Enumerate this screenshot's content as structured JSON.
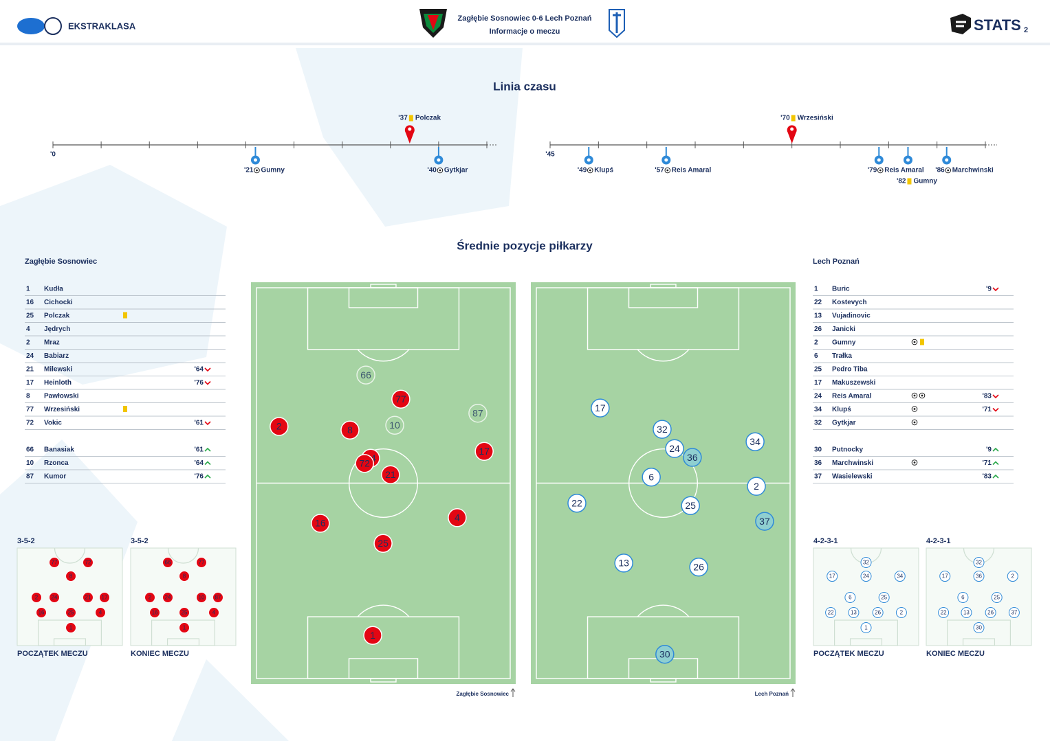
{
  "header": {
    "league": "EKSTRAKLASA",
    "match": "Zagłębie Sosnowiec 0-6  Lech Poznań",
    "subtitle": "Informacje o meczu",
    "brand": "STATS",
    "page": "2"
  },
  "timeline": {
    "title": "Linia czasu",
    "halves": [
      {
        "start_label": "'0",
        "range": [
          0,
          45
        ],
        "ticks": [
          0,
          5,
          10,
          15,
          20,
          25,
          30,
          35,
          40,
          45
        ],
        "events": [
          {
            "minute": {
              "value": 21,
              "label": "'21"
            },
            "team": "away",
            "icon": "goal",
            "player": "Gumny"
          },
          {
            "minute": {
              "value": 37,
              "label": "'37"
            },
            "team": "home",
            "icon": "yellow",
            "player": "Polczak"
          },
          {
            "minute": {
              "value": 40,
              "label": "'40"
            },
            "team": "away",
            "icon": "goal",
            "player": "Gytkjar"
          }
        ]
      },
      {
        "start_label": "'45",
        "range": [
          45,
          90
        ],
        "ticks": [
          45,
          50,
          55,
          60,
          65,
          70,
          75,
          80,
          85,
          90
        ],
        "events": [
          {
            "minute": {
              "value": 49,
              "label": "'49"
            },
            "team": "away",
            "icon": "goal",
            "player": "Klupś"
          },
          {
            "minute": {
              "value": 57,
              "label": "'57"
            },
            "team": "away",
            "icon": "goal",
            "player": "Reis Amaral"
          },
          {
            "minute": {
              "value": 70,
              "label": "'70"
            },
            "team": "home",
            "icon": "yellow",
            "player": "Wrzesiński"
          },
          {
            "minute": {
              "value": 79,
              "label": "'79"
            },
            "team": "away",
            "icon": "goal",
            "player": "Reis Amaral"
          },
          {
            "minute": {
              "value": 82,
              "label": "'82"
            },
            "team": "away",
            "icon": "yellow",
            "player": "Gumny"
          },
          {
            "minute": {
              "value": 86,
              "label": "'86"
            },
            "team": "away",
            "icon": "goal",
            "player": "Marchwinski"
          }
        ]
      }
    ]
  },
  "positions": {
    "title": "Średnie pozycje piłkarzy"
  },
  "teams": [
    {
      "name": "Zagłębie Sosnowiec",
      "color": "#e30613",
      "lineup": [
        {
          "number": "1",
          "name": "Kudła"
        },
        {
          "number": "16",
          "name": "Cichocki"
        },
        {
          "number": "25",
          "name": "Polczak",
          "icons": [
            "yellow"
          ]
        },
        {
          "number": "4",
          "name": "Jędrych"
        },
        {
          "number": "2",
          "name": "Mraz"
        },
        {
          "number": "24",
          "name": "Babiarz"
        },
        {
          "number": "21",
          "name": "Milewski",
          "sub": {
            "minute": "'64",
            "dir": "off"
          }
        },
        {
          "number": "17",
          "name": "Heinloth",
          "sub": {
            "minute": "'76",
            "dir": "off"
          }
        },
        {
          "number": "8",
          "name": "Pawłowski"
        },
        {
          "number": "77",
          "name": "Wrzesiński",
          "icons": [
            "yellow"
          ]
        },
        {
          "number": "72",
          "name": "Vokic",
          "sub": {
            "minute": "'61",
            "dir": "off"
          }
        }
      ],
      "subs": [
        {
          "number": "66",
          "name": "Banasiak",
          "sub": {
            "minute": "'61",
            "dir": "on"
          }
        },
        {
          "number": "10",
          "name": "Rzonca",
          "sub": {
            "minute": "'64",
            "dir": "on"
          }
        },
        {
          "number": "87",
          "name": "Kumor",
          "sub": {
            "minute": "'76",
            "dir": "on"
          }
        }
      ],
      "pitch": [
        {
          "number": "66",
          "x": 43.4,
          "y": 23.1,
          "sub": true
        },
        {
          "number": "77",
          "x": 56.6,
          "y": 29.1
        },
        {
          "number": "10",
          "x": 54.3,
          "y": 35.6,
          "sub": true
        },
        {
          "number": "87",
          "x": 85.7,
          "y": 32.6,
          "sub": true
        },
        {
          "number": "2",
          "x": 10.6,
          "y": 35.9
        },
        {
          "number": "8",
          "x": 37.4,
          "y": 36.8
        },
        {
          "number": "24",
          "x": 45.2,
          "y": 43.8
        },
        {
          "number": "72",
          "x": 42.9,
          "y": 45.1
        },
        {
          "number": "21",
          "x": 52.7,
          "y": 47.9
        },
        {
          "number": "17",
          "x": 88.1,
          "y": 42.1
        },
        {
          "number": "16",
          "x": 26.2,
          "y": 60.0
        },
        {
          "number": "4",
          "x": 77.9,
          "y": 58.6
        },
        {
          "number": "25",
          "x": 49.9,
          "y": 65.0
        },
        {
          "number": "1",
          "x": 46.0,
          "y": 87.9
        }
      ],
      "formations": [
        {
          "shape": "3-5-2",
          "caption": "POCZĄTEK MECZU",
          "players": [
            {
              "number": "77",
              "x": 35.3,
              "y": 14.8
            },
            {
              "number": "72",
              "x": 67.3,
              "y": 14.8
            },
            {
              "number": "8",
              "x": 51,
              "y": 28.9
            },
            {
              "number": "2",
              "x": 18.3,
              "y": 50.7
            },
            {
              "number": "24",
              "x": 35.3,
              "y": 50.7
            },
            {
              "number": "21",
              "x": 67.3,
              "y": 50.7
            },
            {
              "number": "17",
              "x": 83,
              "y": 50.7
            },
            {
              "number": "16",
              "x": 22.9,
              "y": 66.2
            },
            {
              "number": "25",
              "x": 51,
              "y": 66.2
            },
            {
              "number": "4",
              "x": 79.1,
              "y": 66.2
            },
            {
              "number": "1",
              "x": 51,
              "y": 81.7
            }
          ]
        },
        {
          "shape": "3-5-2",
          "caption": "KONIEC MECZU",
          "players": [
            {
              "number": "66",
              "x": 35.3,
              "y": 14.8
            },
            {
              "number": "77",
              "x": 67.3,
              "y": 14.8
            },
            {
              "number": "8",
              "x": 51,
              "y": 28.9
            },
            {
              "number": "2",
              "x": 18.3,
              "y": 50.7
            },
            {
              "number": "24",
              "x": 35.3,
              "y": 50.7
            },
            {
              "number": "10",
              "x": 67.3,
              "y": 50.7
            },
            {
              "number": "87",
              "x": 83,
              "y": 50.7
            },
            {
              "number": "16",
              "x": 22.9,
              "y": 66.2
            },
            {
              "number": "25",
              "x": 51,
              "y": 66.2
            },
            {
              "number": "4",
              "x": 79.1,
              "y": 66.2
            },
            {
              "number": "1",
              "x": 51,
              "y": 81.7
            }
          ]
        }
      ]
    },
    {
      "name": "Lech Poznań",
      "color": "#2f8ad8",
      "lineup": [
        {
          "number": "1",
          "name": "Buric",
          "sub": {
            "minute": "'9",
            "dir": "off"
          }
        },
        {
          "number": "22",
          "name": "Kostevych"
        },
        {
          "number": "13",
          "name": "Vujadinovic"
        },
        {
          "number": "26",
          "name": "Janicki"
        },
        {
          "number": "2",
          "name": "Gumny",
          "icons": [
            "goal",
            "yellow"
          ]
        },
        {
          "number": "6",
          "name": "Trałka"
        },
        {
          "number": "25",
          "name": "Pedro Tiba"
        },
        {
          "number": "17",
          "name": "Makuszewski"
        },
        {
          "number": "24",
          "name": "Reis Amaral",
          "icons": [
            "goal",
            "goal"
          ],
          "sub": {
            "minute": "'83",
            "dir": "off"
          }
        },
        {
          "number": "34",
          "name": "Klupś",
          "icons": [
            "goal"
          ],
          "sub": {
            "minute": "'71",
            "dir": "off"
          }
        },
        {
          "number": "32",
          "name": "Gytkjar",
          "icons": [
            "goal"
          ]
        }
      ],
      "subs": [
        {
          "number": "30",
          "name": "Putnocky",
          "sub": {
            "minute": "'9",
            "dir": "on"
          }
        },
        {
          "number": "36",
          "name": "Marchwinski",
          "icons": [
            "goal"
          ],
          "sub": {
            "minute": "'71",
            "dir": "on"
          }
        },
        {
          "number": "37",
          "name": "Wasielewski",
          "sub": {
            "minute": "'83",
            "dir": "on"
          }
        }
      ],
      "pitch": [
        {
          "number": "17",
          "x": 26.2,
          "y": 31.3
        },
        {
          "number": "32",
          "x": 49.6,
          "y": 36.6
        },
        {
          "number": "24",
          "x": 54.3,
          "y": 41.4
        },
        {
          "number": "36",
          "x": 61.0,
          "y": 43.6,
          "sub": true
        },
        {
          "number": "34",
          "x": 84.7,
          "y": 39.7
        },
        {
          "number": "6",
          "x": 45.5,
          "y": 48.5
        },
        {
          "number": "2",
          "x": 85.2,
          "y": 50.8
        },
        {
          "number": "22",
          "x": 17.4,
          "y": 55.0
        },
        {
          "number": "25",
          "x": 60.3,
          "y": 55.6
        },
        {
          "number": "37",
          "x": 88.3,
          "y": 59.5,
          "sub": true
        },
        {
          "number": "13",
          "x": 35.1,
          "y": 69.9
        },
        {
          "number": "26",
          "x": 63.4,
          "y": 70.9
        },
        {
          "number": "30",
          "x": 50.6,
          "y": 92.6,
          "sub": true
        }
      ],
      "formations": [
        {
          "shape": "4-2-3-1",
          "caption": "POCZĄTEK MECZU",
          "players": [
            {
              "number": "32",
              "x": 50,
              "y": 14.8
            },
            {
              "number": "17",
              "x": 17.8,
              "y": 28.9
            },
            {
              "number": "24",
              "x": 50,
              "y": 28.9
            },
            {
              "number": "34",
              "x": 82.2,
              "y": 28.9
            },
            {
              "number": "6",
              "x": 34.9,
              "y": 50.7
            },
            {
              "number": "25",
              "x": 67.1,
              "y": 50.7
            },
            {
              "number": "22",
              "x": 16.4,
              "y": 66.2
            },
            {
              "number": "13",
              "x": 38.2,
              "y": 66.2
            },
            {
              "number": "26",
              "x": 61.2,
              "y": 66.2
            },
            {
              "number": "2",
              "x": 83.6,
              "y": 66.2
            },
            {
              "number": "1",
              "x": 50,
              "y": 81.7
            }
          ]
        },
        {
          "shape": "4-2-3-1",
          "caption": "KONIEC MECZU",
          "players": [
            {
              "number": "32",
              "x": 50,
              "y": 14.8
            },
            {
              "number": "17",
              "x": 17.8,
              "y": 28.9
            },
            {
              "number": "36",
              "x": 50,
              "y": 28.9
            },
            {
              "number": "2",
              "x": 82.2,
              "y": 28.9
            },
            {
              "number": "6",
              "x": 34.9,
              "y": 50.7
            },
            {
              "number": "25",
              "x": 67.1,
              "y": 50.7
            },
            {
              "number": "22",
              "x": 16.4,
              "y": 66.2
            },
            {
              "number": "13",
              "x": 38.2,
              "y": 66.2
            },
            {
              "number": "26",
              "x": 61.2,
              "y": 66.2
            },
            {
              "number": "37",
              "x": 83.6,
              "y": 66.2
            },
            {
              "number": "30",
              "x": 50,
              "y": 81.7
            }
          ]
        }
      ]
    }
  ]
}
